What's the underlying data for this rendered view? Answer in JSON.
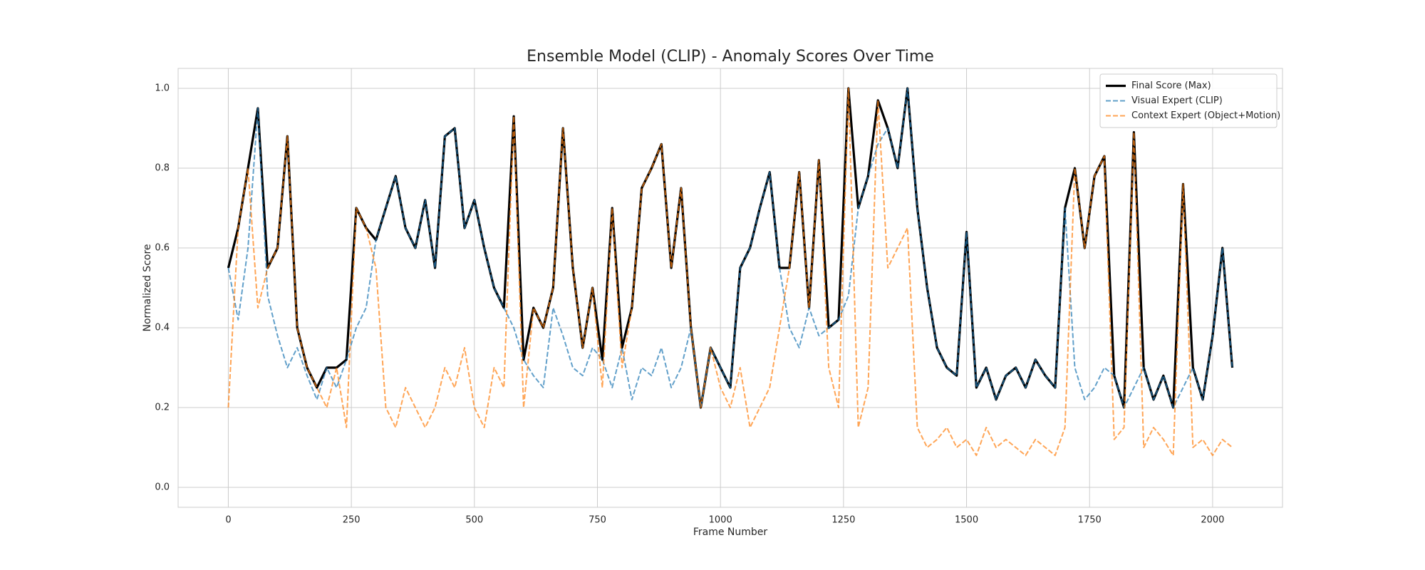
{
  "chart_data": {
    "type": "line",
    "title": "Ensemble Model (CLIP) - Anomaly Scores Over Time",
    "xlabel": "Frame Number",
    "ylabel": "Normalized Score",
    "x": [
      0,
      20,
      40,
      60,
      80,
      100,
      120,
      140,
      160,
      180,
      200,
      220,
      240,
      260,
      280,
      300,
      320,
      340,
      360,
      380,
      400,
      420,
      440,
      460,
      480,
      500,
      520,
      540,
      560,
      580,
      600,
      620,
      640,
      660,
      680,
      700,
      720,
      740,
      760,
      780,
      800,
      820,
      840,
      860,
      880,
      900,
      920,
      940,
      960,
      980,
      1000,
      1020,
      1040,
      1060,
      1080,
      1100,
      1120,
      1140,
      1160,
      1180,
      1200,
      1220,
      1240,
      1260,
      1280,
      1300,
      1320,
      1340,
      1360,
      1380,
      1400,
      1420,
      1440,
      1460,
      1480,
      1500,
      1520,
      1540,
      1560,
      1580,
      1600,
      1620,
      1640,
      1660,
      1680,
      1700,
      1720,
      1740,
      1760,
      1780,
      1800,
      1820,
      1840,
      1860,
      1880,
      1900,
      1920,
      1940,
      1960,
      1980,
      2000,
      2020,
      2040
    ],
    "series": [
      {
        "name": "Final Score (Max)",
        "color": "#000000",
        "style": "solid",
        "values": [
          0.55,
          0.65,
          0.8,
          0.95,
          0.55,
          0.6,
          0.88,
          0.4,
          0.3,
          0.25,
          0.3,
          0.3,
          0.32,
          0.7,
          0.65,
          0.62,
          0.7,
          0.78,
          0.65,
          0.6,
          0.72,
          0.55,
          0.88,
          0.9,
          0.65,
          0.72,
          0.6,
          0.5,
          0.45,
          0.93,
          0.32,
          0.45,
          0.4,
          0.5,
          0.9,
          0.55,
          0.35,
          0.5,
          0.32,
          0.7,
          0.35,
          0.45,
          0.75,
          0.8,
          0.86,
          0.55,
          0.75,
          0.4,
          0.2,
          0.35,
          0.3,
          0.25,
          0.55,
          0.6,
          0.7,
          0.79,
          0.55,
          0.55,
          0.79,
          0.45,
          0.82,
          0.4,
          0.42,
          1.0,
          0.7,
          0.78,
          0.97,
          0.9,
          0.8,
          1.0,
          0.7,
          0.5,
          0.35,
          0.3,
          0.28,
          0.64,
          0.25,
          0.3,
          0.22,
          0.28,
          0.3,
          0.25,
          0.32,
          0.28,
          0.25,
          0.7,
          0.8,
          0.6,
          0.78,
          0.83,
          0.28,
          0.2,
          0.89,
          0.3,
          0.22,
          0.28,
          0.2,
          0.76,
          0.3,
          0.22,
          0.38,
          0.6,
          0.3
        ]
      },
      {
        "name": "Visual Expert (CLIP)",
        "color": "#1f77b4",
        "style": "dashed",
        "values": [
          0.55,
          0.42,
          0.6,
          0.95,
          0.48,
          0.38,
          0.3,
          0.35,
          0.28,
          0.22,
          0.3,
          0.25,
          0.32,
          0.4,
          0.45,
          0.62,
          0.7,
          0.78,
          0.65,
          0.6,
          0.72,
          0.55,
          0.88,
          0.9,
          0.65,
          0.72,
          0.6,
          0.5,
          0.45,
          0.4,
          0.32,
          0.28,
          0.25,
          0.45,
          0.38,
          0.3,
          0.28,
          0.35,
          0.32,
          0.25,
          0.35,
          0.22,
          0.3,
          0.28,
          0.35,
          0.25,
          0.3,
          0.4,
          0.2,
          0.35,
          0.3,
          0.25,
          0.55,
          0.6,
          0.7,
          0.79,
          0.55,
          0.4,
          0.35,
          0.45,
          0.38,
          0.4,
          0.42,
          0.48,
          0.7,
          0.78,
          0.86,
          0.9,
          0.8,
          1.0,
          0.7,
          0.5,
          0.35,
          0.3,
          0.28,
          0.64,
          0.25,
          0.3,
          0.22,
          0.28,
          0.3,
          0.25,
          0.32,
          0.28,
          0.25,
          0.7,
          0.3,
          0.22,
          0.25,
          0.3,
          0.28,
          0.2,
          0.25,
          0.3,
          0.22,
          0.28,
          0.2,
          0.25,
          0.3,
          0.22,
          0.38,
          0.6,
          0.3
        ]
      },
      {
        "name": "Context Expert (Object+Motion)",
        "color": "#ff7f0e",
        "style": "dashed",
        "values": [
          0.2,
          0.65,
          0.8,
          0.45,
          0.55,
          0.6,
          0.88,
          0.4,
          0.3,
          0.25,
          0.2,
          0.3,
          0.15,
          0.7,
          0.65,
          0.55,
          0.2,
          0.15,
          0.25,
          0.2,
          0.15,
          0.2,
          0.3,
          0.25,
          0.35,
          0.2,
          0.15,
          0.3,
          0.25,
          0.93,
          0.2,
          0.45,
          0.4,
          0.5,
          0.9,
          0.55,
          0.35,
          0.5,
          0.25,
          0.7,
          0.3,
          0.45,
          0.75,
          0.8,
          0.86,
          0.55,
          0.75,
          0.4,
          0.2,
          0.35,
          0.25,
          0.2,
          0.3,
          0.15,
          0.2,
          0.25,
          0.4,
          0.55,
          0.79,
          0.45,
          0.82,
          0.3,
          0.2,
          1.0,
          0.15,
          0.25,
          0.97,
          0.55,
          0.6,
          0.65,
          0.15,
          0.1,
          0.12,
          0.15,
          0.1,
          0.12,
          0.08,
          0.15,
          0.1,
          0.12,
          0.1,
          0.08,
          0.12,
          0.1,
          0.08,
          0.15,
          0.8,
          0.6,
          0.78,
          0.83,
          0.12,
          0.15,
          0.89,
          0.1,
          0.15,
          0.12,
          0.08,
          0.76,
          0.1,
          0.12,
          0.08,
          0.12,
          0.1
        ]
      }
    ],
    "xlim": [
      -102,
      2142
    ],
    "xticks": [
      0,
      250,
      500,
      750,
      1000,
      1250,
      1500,
      1750,
      2000
    ],
    "ylim": [
      -0.05,
      1.05
    ],
    "yticks": [
      {
        "value": 0,
        "label": "0.0"
      },
      {
        "value": 0.2,
        "label": "0.2"
      },
      {
        "value": 0.4,
        "label": "0.4"
      },
      {
        "value": 0.6,
        "label": "0.6"
      },
      {
        "value": 0.8,
        "label": "0.8"
      },
      {
        "value": 1,
        "label": "1.0"
      }
    ],
    "grid": true,
    "legend": "upper right"
  }
}
